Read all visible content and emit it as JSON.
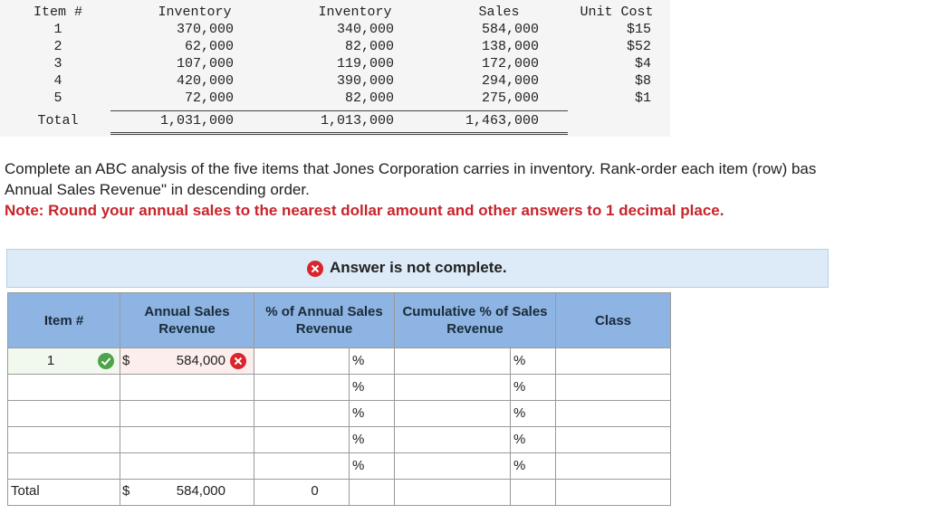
{
  "inventory_table": {
    "headers": [
      "Item #",
      "Inventory",
      "Inventory",
      "Sales",
      "Unit Cost"
    ],
    "rows": [
      [
        "1",
        "370,000",
        "340,000",
        "584,000",
        "$15"
      ],
      [
        "2",
        "62,000",
        "82,000",
        "138,000",
        "$52"
      ],
      [
        "3",
        "107,000",
        "119,000",
        "172,000",
        "$4"
      ],
      [
        "4",
        "420,000",
        "390,000",
        "294,000",
        "$8"
      ],
      [
        "5",
        "72,000",
        "82,000",
        "275,000",
        "$1"
      ]
    ],
    "total": [
      "Total",
      "1,031,000",
      "1,013,000",
      "1,463,000"
    ]
  },
  "instructions": {
    "line1": "Complete an ABC analysis of the five items that Jones Corporation carries in inventory. Rank-order each item (row) bas",
    "line2": "Annual Sales Revenue\" in descending order.",
    "note": "Note: Round your annual sales to the nearest dollar amount and other answers to 1 decimal place."
  },
  "answer": {
    "status": "Answer is not complete.",
    "headers": [
      "Item #",
      "Annual Sales Revenue",
      "% of Annual Sales Revenue",
      "Cumulative % of Sales Revenue",
      "Class"
    ],
    "rows": [
      {
        "item": "1",
        "currency": "$",
        "sales": "584,000",
        "pct_unit": "%",
        "cum_unit": "%"
      },
      {
        "pct_unit": "%",
        "cum_unit": "%"
      },
      {
        "pct_unit": "%",
        "cum_unit": "%"
      },
      {
        "pct_unit": "%",
        "cum_unit": "%"
      },
      {
        "pct_unit": "%",
        "cum_unit": "%"
      }
    ],
    "total": {
      "label": "Total",
      "currency": "$",
      "sales": "584,000",
      "pct": "0"
    }
  }
}
